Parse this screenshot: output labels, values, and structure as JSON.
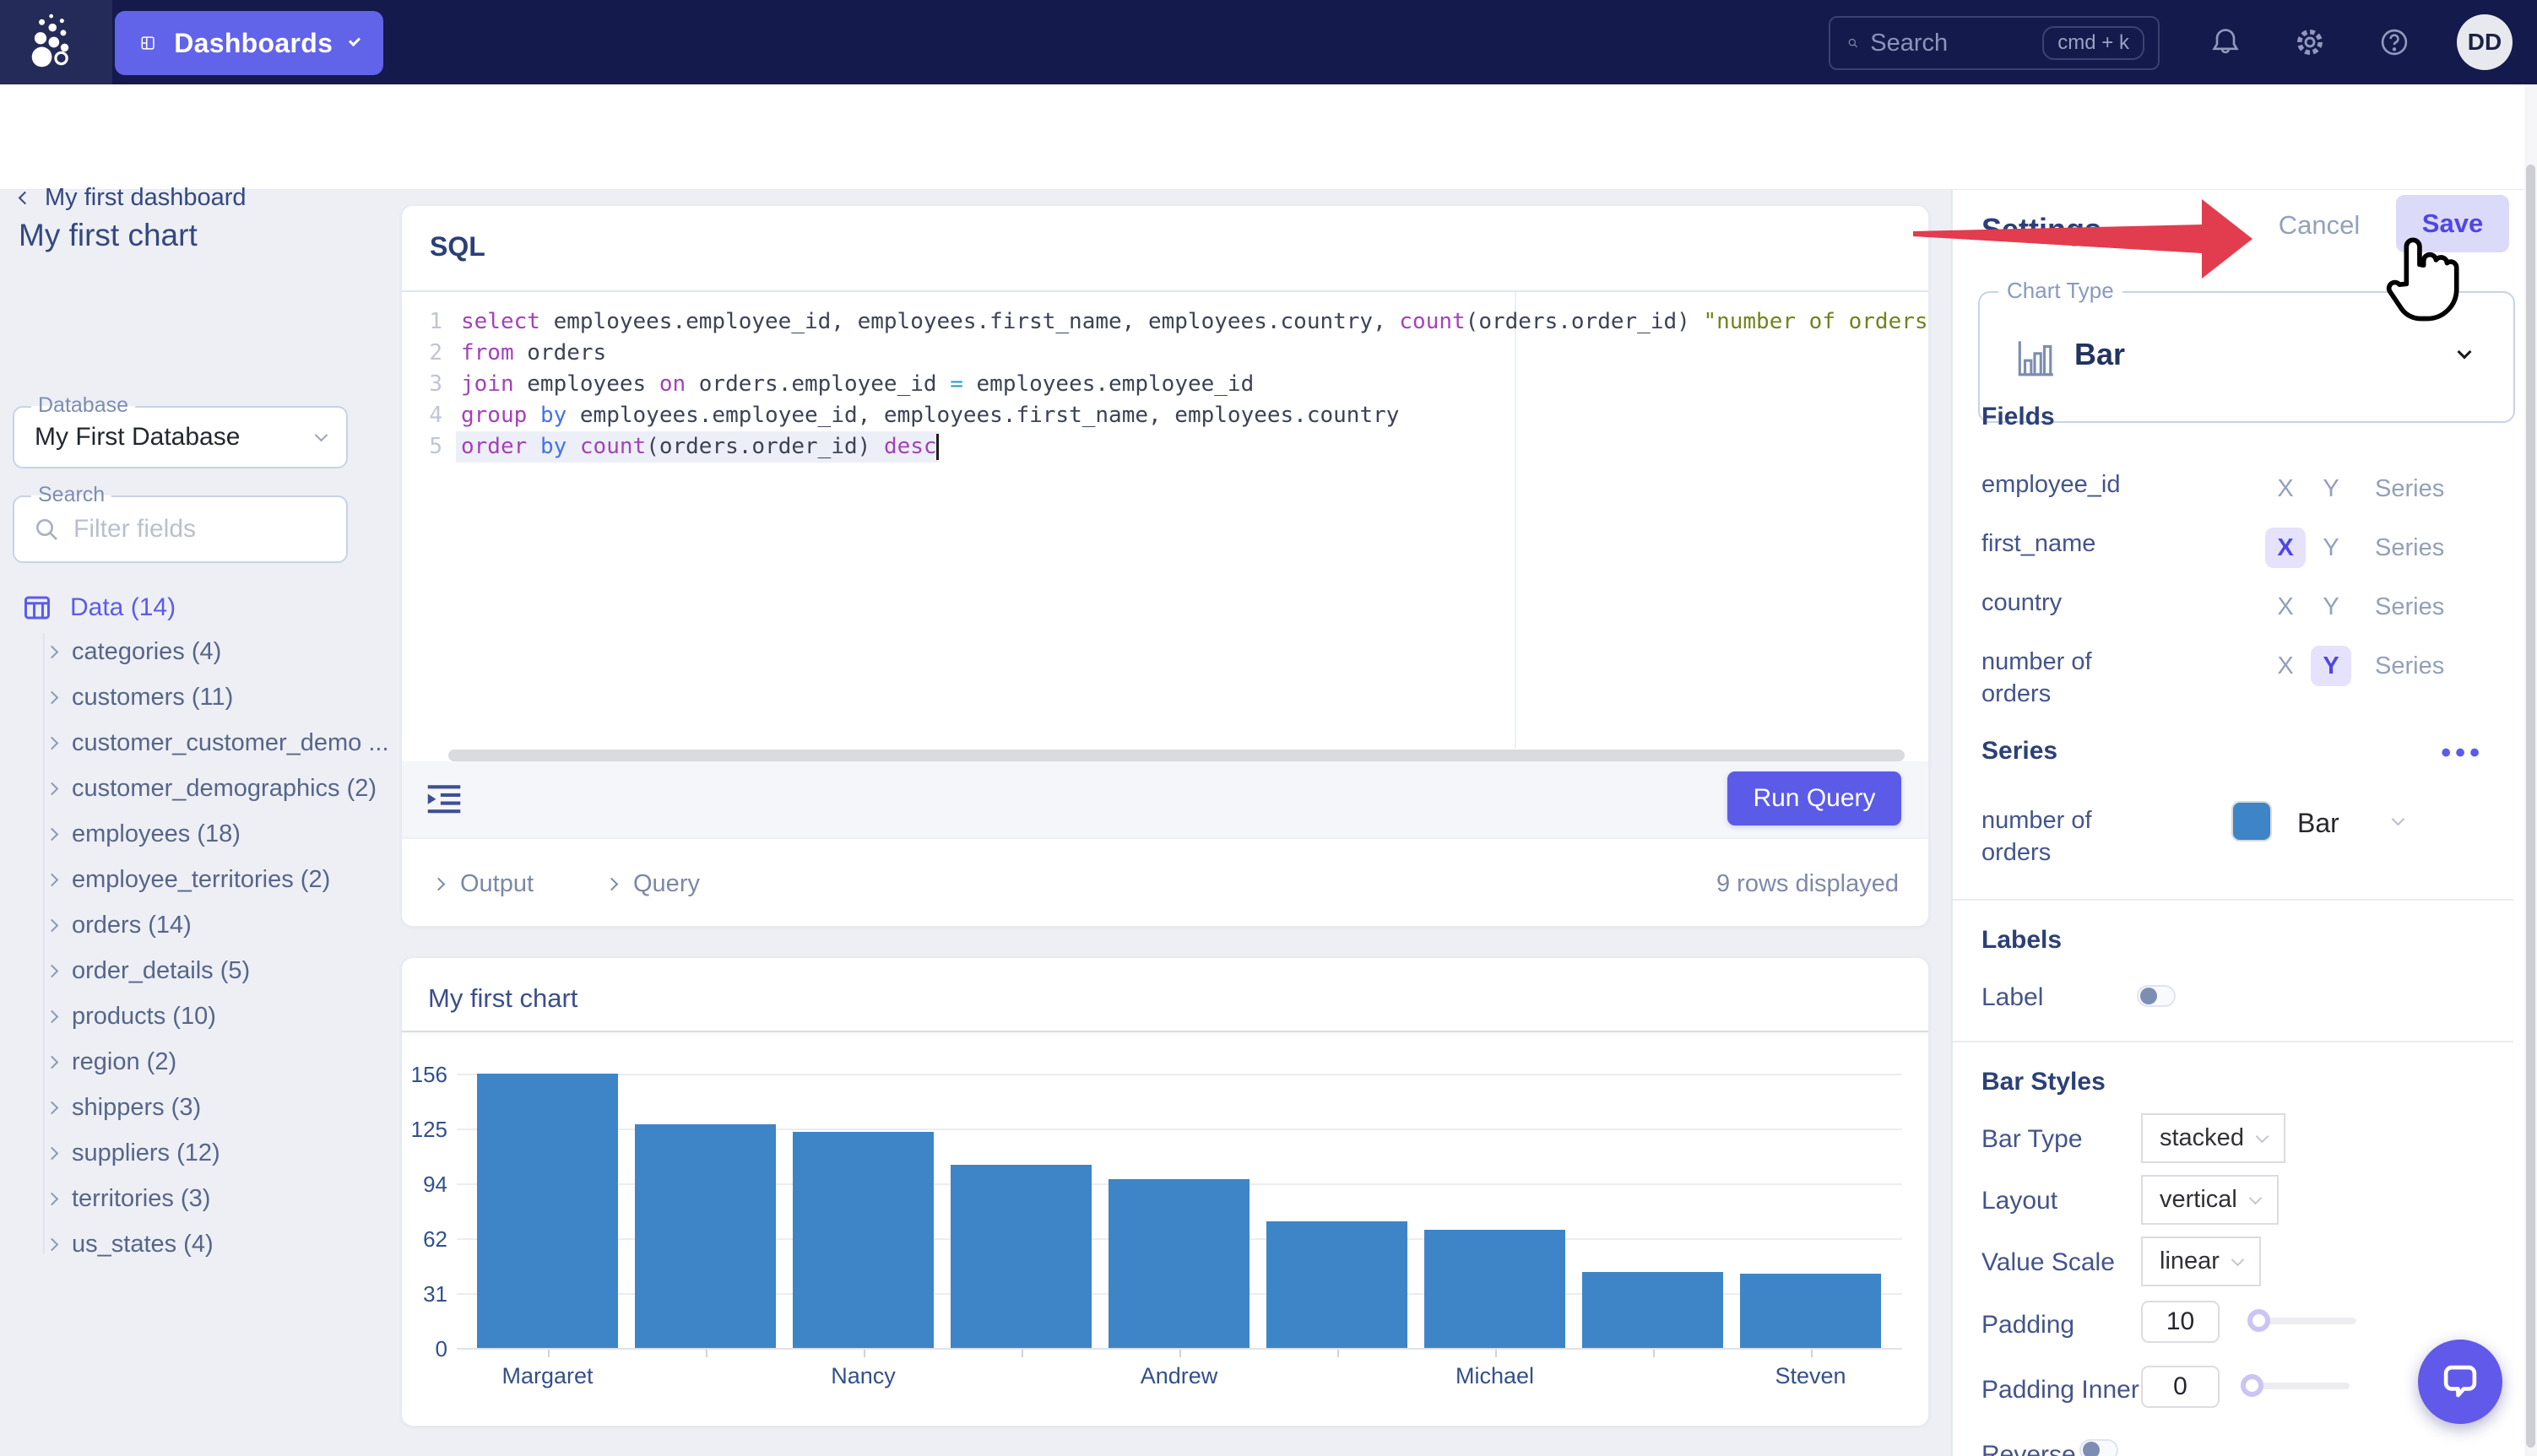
{
  "topbar": {
    "app_switcher_label": "Dashboards",
    "search_placeholder": "Search",
    "search_shortcut": "cmd + k",
    "avatar_initials": "DD"
  },
  "header": {
    "back_label": "My first dashboard",
    "page_title": "My first chart",
    "cancel_label": "Cancel",
    "save_label": "Save"
  },
  "sidebar": {
    "database_label": "Database",
    "database_value": "My First Database",
    "search_label": "Search",
    "search_placeholder": "Filter fields",
    "data_header": "Data (14)",
    "tree": [
      {
        "label": "categories (4)"
      },
      {
        "label": "customers (11)"
      },
      {
        "label": "customer_customer_demo ..."
      },
      {
        "label": "customer_demographics (2)"
      },
      {
        "label": "employees (18)"
      },
      {
        "label": "employee_territories (2)"
      },
      {
        "label": "orders (14)"
      },
      {
        "label": "order_details (5)"
      },
      {
        "label": "products (10)"
      },
      {
        "label": "region (2)"
      },
      {
        "label": "shippers (3)"
      },
      {
        "label": "suppliers (12)"
      },
      {
        "label": "territories (3)"
      },
      {
        "label": "us_states (4)"
      }
    ]
  },
  "sql_editor": {
    "panel_title": "SQL",
    "run_button_label": "Run Query",
    "output_section_label": "Output",
    "query_section_label": "Query",
    "rows_status": "9 rows displayed",
    "lines": [
      {
        "no": "1",
        "tokens": [
          [
            "kw",
            "select"
          ],
          [
            "pl",
            " employees.employee_id, employees.first_name, employees.country, "
          ],
          [
            "kw",
            "count"
          ],
          [
            "pl",
            "(orders.order_id) "
          ],
          [
            "str",
            "\"number of orders\""
          ]
        ]
      },
      {
        "no": "2",
        "tokens": [
          [
            "kw",
            "from"
          ],
          [
            "pl",
            " orders"
          ]
        ]
      },
      {
        "no": "3",
        "tokens": [
          [
            "kw",
            "join"
          ],
          [
            "pl",
            " employees "
          ],
          [
            "kw",
            "on"
          ],
          [
            "pl",
            " orders.employee_id "
          ],
          [
            "op",
            "="
          ],
          [
            "pl",
            " employees.employee_id"
          ]
        ]
      },
      {
        "no": "4",
        "tokens": [
          [
            "kw",
            "group"
          ],
          [
            "pl",
            " "
          ],
          [
            "kw2",
            "by"
          ],
          [
            "pl",
            " employees.employee_id, employees.first_name, employees.country"
          ]
        ]
      },
      {
        "no": "5",
        "tokens": [
          [
            "kw",
            "order"
          ],
          [
            "pl",
            " "
          ],
          [
            "kw2",
            "by"
          ],
          [
            "pl",
            " "
          ],
          [
            "kw",
            "count"
          ],
          [
            "pl",
            "(orders.order_id) "
          ],
          [
            "kw",
            "desc"
          ]
        ],
        "active": true
      }
    ]
  },
  "chart_card": {
    "title": "My first chart"
  },
  "chart_data": {
    "type": "bar",
    "title": "My first chart",
    "values": [
      156,
      127,
      123,
      104,
      96,
      72,
      67,
      43,
      42
    ],
    "x_tick_labels": [
      "Margaret",
      "Nancy",
      "Andrew",
      "Michael",
      "Steven"
    ],
    "x_tick_positions": [
      0,
      2,
      4,
      6,
      8
    ],
    "y_ticks": [
      0,
      31,
      62,
      94,
      125,
      156
    ],
    "ylim": [
      0,
      156
    ],
    "xlabel": "",
    "ylabel": "",
    "bar_color": "#3d85c6",
    "grid": "horizontal-gridlines",
    "legend_position": "none"
  },
  "settings": {
    "panel_title": "Settings",
    "chart_type_label": "Chart Type",
    "chart_type_value": "Bar",
    "fields_title": "Fields",
    "axis_options": [
      "X",
      "Y",
      "Series"
    ],
    "fields": [
      {
        "name": "employee_id",
        "active": ""
      },
      {
        "name": "first_name",
        "active": "X"
      },
      {
        "name": "country",
        "active": ""
      },
      {
        "name": "number of orders",
        "active": "Y"
      }
    ],
    "series_title": "Series",
    "series_rows": [
      {
        "name": "number of orders",
        "type": "Bar",
        "color": "#3d85c6"
      }
    ],
    "labels_title": "Labels",
    "label_toggle_label": "Label",
    "label_toggle_on": false,
    "bar_styles_title": "Bar Styles",
    "rows": {
      "bar_type": {
        "label": "Bar Type",
        "value": "stacked"
      },
      "layout": {
        "label": "Layout",
        "value": "vertical"
      },
      "value_scale": {
        "label": "Value Scale",
        "value": "linear"
      },
      "padding": {
        "label": "Padding",
        "value": "10"
      },
      "padding_inner": {
        "label": "Padding Inner",
        "value": "0"
      },
      "reverse": {
        "label": "Reverse",
        "on": false
      }
    }
  },
  "icons": {
    "logo": "dot-cluster-logo",
    "app_switcher": "dashboard-layout-icon",
    "search": "search-icon",
    "shortcut": "keyboard-badge",
    "notifications": "bell-icon",
    "settings": "gear-icon",
    "help": "help-circle-icon",
    "data_header": "table-icon",
    "chart_type": "bar-chart-icon",
    "editor_toolbar": "format-indent-icon",
    "series_menu": "ellipsis-icon",
    "chat": "chat-bubble-icon",
    "annotation": "red-arrow-and-hand-cursor"
  },
  "colors": {
    "topbar_navy": "#141a4b",
    "accent_purple": "#5b5ce8",
    "save_bg": "#dcdaf9",
    "save_text": "#4f46e5",
    "bar_blue": "#3d85c6",
    "arrow_red": "#e23c4f",
    "heading_navy": "#2c4077"
  }
}
